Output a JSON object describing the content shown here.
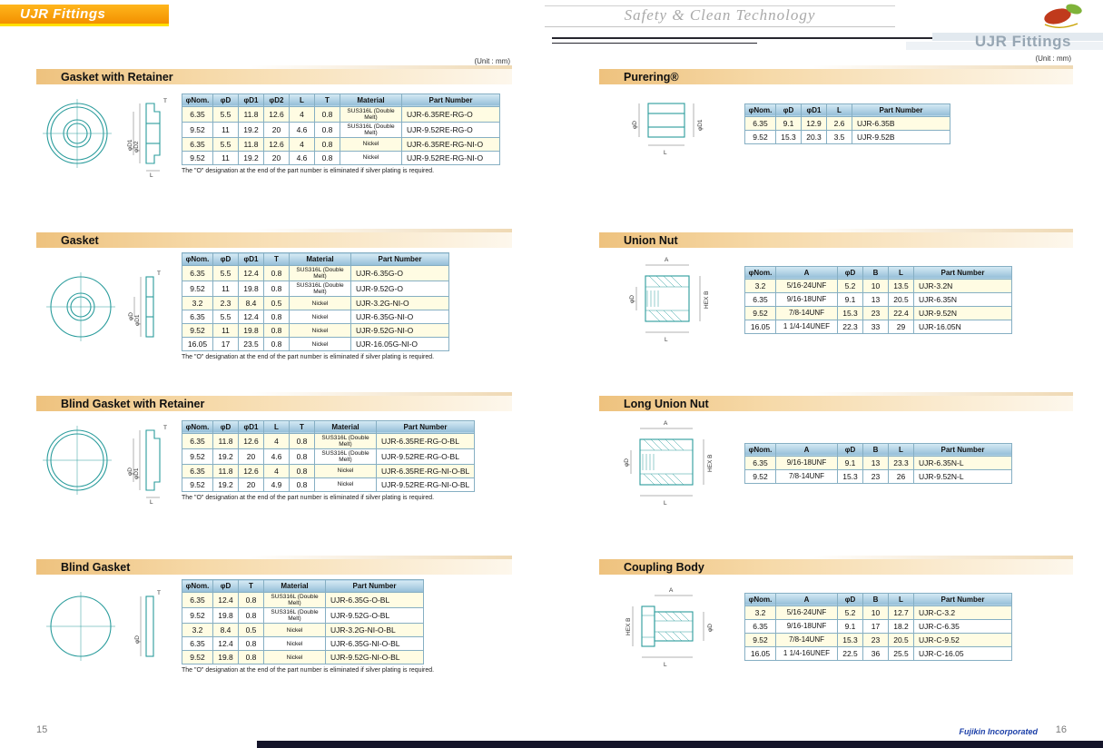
{
  "header": {
    "brand": "UJR Fittings",
    "tagline": "Safety & Clean Technology",
    "right_title": "UJR Fittings",
    "unit_left": "(Unit : mm)",
    "unit_right": "(Unit : mm)"
  },
  "footer": {
    "page_left": "15",
    "page_right": "16",
    "company": "Fujikin Incorporated"
  },
  "shared_note": "The \"O\" designation at the end of the part number is eliminated if silver plating is required.",
  "sections": [
    {
      "title": "Gasket with Retainer",
      "columns": [
        "φNom.",
        "φD",
        "φD1",
        "φD2",
        "L",
        "T",
        "Material",
        "Part Number"
      ],
      "rows": [
        [
          "6.35",
          "5.5",
          "11.8",
          "12.6",
          "4",
          "0.8",
          "SUS316L (Double Melt)",
          "UJR-6.35RE-RG-O"
        ],
        [
          "9.52",
          "11",
          "19.2",
          "20",
          "4.6",
          "0.8",
          "SUS316L (Double Melt)",
          "UJR-9.52RE-RG-O"
        ],
        [
          "6.35",
          "5.5",
          "11.8",
          "12.6",
          "4",
          "0.8",
          "Nickel",
          "UJR-6.35RE-RG-NI-O"
        ],
        [
          "9.52",
          "11",
          "19.2",
          "20",
          "4.6",
          "0.8",
          "Nickel",
          "UJR-9.52RE-RG-NI-O"
        ]
      ],
      "drawing_labels": [
        "φD2",
        "φD1",
        "T",
        "L"
      ]
    },
    {
      "title": "Gasket",
      "columns": [
        "φNom.",
        "φD",
        "φD1",
        "T",
        "Material",
        "Part Number"
      ],
      "rows": [
        [
          "6.35",
          "5.5",
          "12.4",
          "0.8",
          "SUS316L (Double Melt)",
          "UJR-6.35G-O"
        ],
        [
          "9.52",
          "11",
          "19.8",
          "0.8",
          "SUS316L (Double Melt)",
          "UJR-9.52G-O"
        ],
        [
          "3.2",
          "2.3",
          "8.4",
          "0.5",
          "Nickel",
          "UJR-3.2G-NI-O"
        ],
        [
          "6.35",
          "5.5",
          "12.4",
          "0.8",
          "Nickel",
          "UJR-6.35G-NI-O"
        ],
        [
          "9.52",
          "11",
          "19.8",
          "0.8",
          "Nickel",
          "UJR-9.52G-NI-O"
        ],
        [
          "16.05",
          "17",
          "23.5",
          "0.8",
          "Nickel",
          "UJR-16.05G-NI-O"
        ]
      ],
      "drawing_labels": [
        "φD1",
        "φD",
        "T"
      ]
    },
    {
      "title": "Blind Gasket with Retainer",
      "columns": [
        "φNom.",
        "φD",
        "φD1",
        "L",
        "T",
        "Material",
        "Part Number"
      ],
      "rows": [
        [
          "6.35",
          "11.8",
          "12.6",
          "4",
          "0.8",
          "SUS316L (Double Melt)",
          "UJR-6.35RE-RG-O-BL"
        ],
        [
          "9.52",
          "19.2",
          "20",
          "4.6",
          "0.8",
          "SUS316L (Double Melt)",
          "UJR-9.52RE-RG-O-BL"
        ],
        [
          "6.35",
          "11.8",
          "12.6",
          "4",
          "0.8",
          "Nickel",
          "UJR-6.35RE-RG-NI-O-BL"
        ],
        [
          "9.52",
          "19.2",
          "20",
          "4.9",
          "0.8",
          "Nickel",
          "UJR-9.52RE-RG-NI-O-BL"
        ]
      ],
      "drawing_labels": [
        "φD1",
        "φD",
        "T",
        "L"
      ]
    },
    {
      "title": "Blind Gasket",
      "columns": [
        "φNom.",
        "φD",
        "T",
        "Material",
        "Part Number"
      ],
      "rows": [
        [
          "6.35",
          "12.4",
          "0.8",
          "SUS316L (Double Melt)",
          "UJR-6.35G-O-BL"
        ],
        [
          "9.52",
          "19.8",
          "0.8",
          "SUS316L (Double Melt)",
          "UJR-9.52G-O-BL"
        ],
        [
          "3.2",
          "8.4",
          "0.5",
          "Nickel",
          "UJR-3.2G-NI-O-BL"
        ],
        [
          "6.35",
          "12.4",
          "0.8",
          "Nickel",
          "UJR-6.35G-NI-O-BL"
        ],
        [
          "9.52",
          "19.8",
          "0.8",
          "Nickel",
          "UJR-9.52G-NI-O-BL"
        ]
      ],
      "drawing_labels": [
        "φD",
        "T"
      ]
    },
    {
      "title": "Purering®",
      "columns": [
        "φNom.",
        "φD",
        "φD1",
        "L",
        "Part Number"
      ],
      "rows": [
        [
          "6.35",
          "9.1",
          "12.9",
          "2.6",
          "UJR-6.35B"
        ],
        [
          "9.52",
          "15.3",
          "20.3",
          "3.5",
          "UJR-9.52B"
        ]
      ],
      "drawing_labels": [
        "φD",
        "φD1",
        "L"
      ]
    },
    {
      "title": "Union Nut",
      "columns": [
        "φNom.",
        "A",
        "φD",
        "B",
        "L",
        "Part Number"
      ],
      "rows": [
        [
          "3.2",
          "5/16-24UNF",
          "5.2",
          "10",
          "13.5",
          "UJR-3.2N"
        ],
        [
          "6.35",
          "9/16-18UNF",
          "9.1",
          "13",
          "20.5",
          "UJR-6.35N"
        ],
        [
          "9.52",
          "7/8-14UNF",
          "15.3",
          "23",
          "22.4",
          "UJR-9.52N"
        ],
        [
          "16.05",
          "1 1/4-14UNEF",
          "22.3",
          "33",
          "29",
          "UJR-16.05N"
        ]
      ],
      "drawing_labels": [
        "A",
        "φD",
        "HEX B",
        "L"
      ]
    },
    {
      "title": "Long Union Nut",
      "columns": [
        "φNom.",
        "A",
        "φD",
        "B",
        "L",
        "Part Number"
      ],
      "rows": [
        [
          "6.35",
          "9/16-18UNF",
          "9.1",
          "13",
          "23.3",
          "UJR-6.35N-L"
        ],
        [
          "9.52",
          "7/8-14UNF",
          "15.3",
          "23",
          "26",
          "UJR-9.52N-L"
        ]
      ],
      "drawing_labels": [
        "A",
        "φD",
        "HEX B",
        "L"
      ]
    },
    {
      "title": "Coupling Body",
      "columns": [
        "φNom.",
        "A",
        "φD",
        "B",
        "L",
        "Part Number"
      ],
      "rows": [
        [
          "3.2",
          "5/16-24UNF",
          "5.2",
          "10",
          "12.7",
          "UJR-C-3.2"
        ],
        [
          "6.35",
          "9/16-18UNF",
          "9.1",
          "17",
          "18.2",
          "UJR-C-6.35"
        ],
        [
          "9.52",
          "7/8-14UNF",
          "15.3",
          "23",
          "20.5",
          "UJR-C-9.52"
        ],
        [
          "16.05",
          "1 1/4-16UNEF",
          "22.5",
          "36",
          "25.5",
          "UJR-C-16.05"
        ]
      ],
      "drawing_labels": [
        "A",
        "HEX B",
        "φD",
        "L"
      ]
    }
  ]
}
